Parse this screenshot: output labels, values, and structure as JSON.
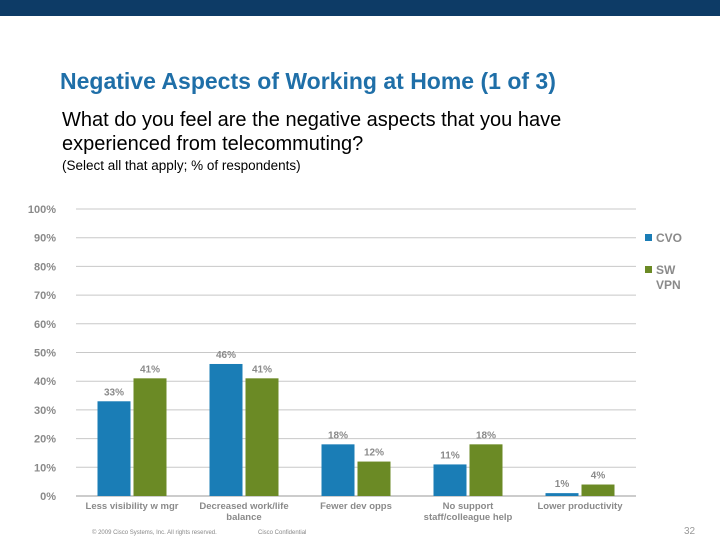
{
  "slide": {
    "title": "Negative Aspects of Working at Home (1 of 3)",
    "question": "What do you feel are the negative aspects that you have experienced from telecommuting?",
    "note": "(Select all that apply; % of respondents)",
    "footer_copyright": "© 2009 Cisco Systems, Inc. All rights reserved.",
    "footer_confidential": "Cisco Confidential",
    "page_number": "32",
    "colors": {
      "top_bar": "#0d3b66",
      "title": "#1f6fa8"
    }
  },
  "chart_data": {
    "type": "bar",
    "categories": [
      "Less visibility w mgr",
      "Decreased work/life balance",
      "Fewer dev opps",
      "No support staff/colleague help",
      "Lower productivity"
    ],
    "series": [
      {
        "name": "CVO",
        "color": "#1a7db6",
        "values": [
          33,
          46,
          18,
          11,
          1
        ],
        "labels": [
          "33%",
          "46%",
          "18%",
          "11%",
          "1%"
        ]
      },
      {
        "name": "SW VPN",
        "color": "#6b8a25",
        "values": [
          41,
          41,
          12,
          18,
          4
        ],
        "labels": [
          "41%",
          "41%",
          "12%",
          "18%",
          "4%"
        ]
      }
    ],
    "yticks": [
      "0%",
      "10%",
      "20%",
      "30%",
      "40%",
      "50%",
      "60%",
      "70%",
      "80%",
      "90%",
      "100%"
    ],
    "ylim": [
      0,
      100
    ],
    "grid": true,
    "legend": "right"
  }
}
